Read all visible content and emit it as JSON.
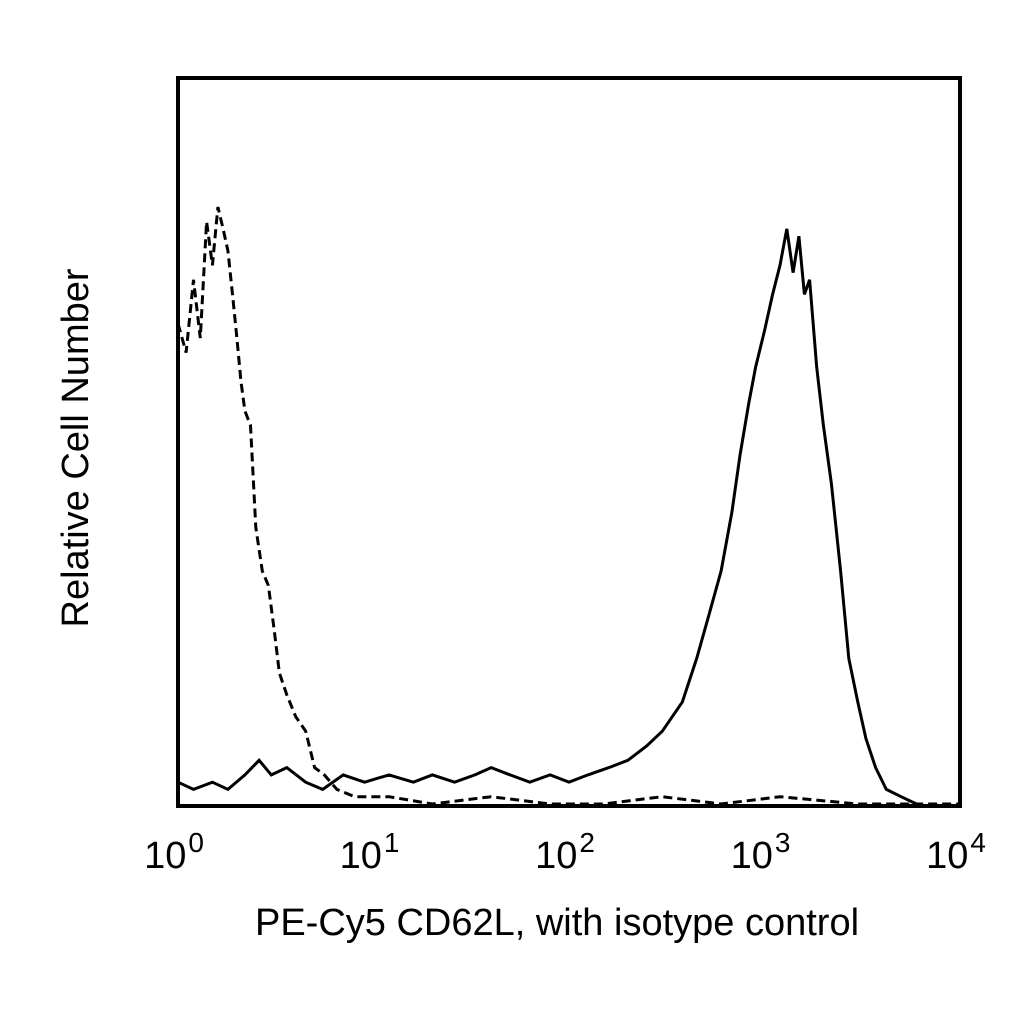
{
  "chart_data": {
    "type": "line",
    "title": "",
    "xlabel": "PE-Cy5 CD62L, with isotype control",
    "ylabel": "Relative Cell Number",
    "x_scale": "log",
    "xlim": [
      1,
      10000
    ],
    "ylim": [
      0,
      100
    ],
    "x_ticks": [
      {
        "base": "10",
        "exp": "0",
        "value": 1
      },
      {
        "base": "10",
        "exp": "1",
        "value": 10
      },
      {
        "base": "10",
        "exp": "2",
        "value": 100
      },
      {
        "base": "10",
        "exp": "3",
        "value": 1000
      },
      {
        "base": "10",
        "exp": "4",
        "value": 10000
      }
    ],
    "y_ticks_shown": false,
    "grid": false,
    "series": [
      {
        "style": "solid",
        "color": "#000000",
        "points": [
          [
            1.0,
            3
          ],
          [
            1.2,
            2
          ],
          [
            1.5,
            3
          ],
          [
            1.8,
            2
          ],
          [
            2.2,
            4
          ],
          [
            2.6,
            6
          ],
          [
            3.0,
            4
          ],
          [
            3.6,
            5
          ],
          [
            4.5,
            3
          ],
          [
            5.5,
            2
          ],
          [
            7.0,
            4
          ],
          [
            9.0,
            3
          ],
          [
            12,
            4
          ],
          [
            16,
            3
          ],
          [
            20,
            4
          ],
          [
            26,
            3
          ],
          [
            33,
            4
          ],
          [
            40,
            5
          ],
          [
            50,
            4
          ],
          [
            63,
            3
          ],
          [
            80,
            4
          ],
          [
            100,
            3
          ],
          [
            125,
            4
          ],
          [
            160,
            5
          ],
          [
            200,
            6
          ],
          [
            250,
            8
          ],
          [
            300,
            10
          ],
          [
            380,
            14
          ],
          [
            450,
            20
          ],
          [
            520,
            26
          ],
          [
            600,
            32
          ],
          [
            680,
            40
          ],
          [
            750,
            48
          ],
          [
            830,
            55
          ],
          [
            900,
            60
          ],
          [
            1000,
            65
          ],
          [
            1100,
            70
          ],
          [
            1200,
            74
          ],
          [
            1300,
            79
          ],
          [
            1400,
            73
          ],
          [
            1500,
            78
          ],
          [
            1600,
            70
          ],
          [
            1700,
            72
          ],
          [
            1850,
            60
          ],
          [
            2000,
            52
          ],
          [
            2200,
            44
          ],
          [
            2450,
            32
          ],
          [
            2700,
            20
          ],
          [
            3000,
            14
          ],
          [
            3300,
            9
          ],
          [
            3700,
            5
          ],
          [
            4200,
            2
          ],
          [
            5000,
            1
          ],
          [
            6000,
            0
          ]
        ]
      },
      {
        "style": "dashed",
        "color": "#000000",
        "points": [
          [
            1.0,
            66
          ],
          [
            1.1,
            62
          ],
          [
            1.2,
            72
          ],
          [
            1.3,
            64
          ],
          [
            1.4,
            80
          ],
          [
            1.5,
            74
          ],
          [
            1.6,
            82
          ],
          [
            1.7,
            79
          ],
          [
            1.8,
            76
          ],
          [
            1.9,
            70
          ],
          [
            2.0,
            64
          ],
          [
            2.1,
            58
          ],
          [
            2.2,
            54
          ],
          [
            2.35,
            52
          ],
          [
            2.5,
            38
          ],
          [
            2.7,
            32
          ],
          [
            2.9,
            30
          ],
          [
            3.1,
            24
          ],
          [
            3.3,
            18
          ],
          [
            3.6,
            15
          ],
          [
            4.0,
            12
          ],
          [
            4.5,
            10
          ],
          [
            5.0,
            5
          ],
          [
            5.6,
            4
          ],
          [
            6.5,
            2
          ],
          [
            8.0,
            1
          ],
          [
            12,
            1
          ],
          [
            20,
            0
          ],
          [
            40,
            1
          ],
          [
            80,
            0
          ],
          [
            150,
            0
          ],
          [
            300,
            1
          ],
          [
            600,
            0
          ],
          [
            1200,
            1
          ],
          [
            3000,
            0
          ],
          [
            10000,
            0
          ]
        ]
      }
    ]
  }
}
